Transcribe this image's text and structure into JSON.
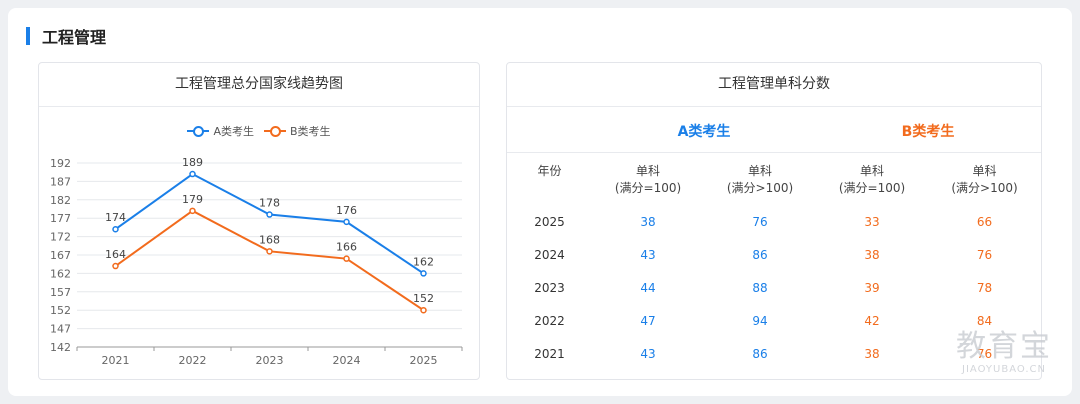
{
  "section": {
    "title": "工程管理"
  },
  "left_card": {
    "title": "工程管理总分国家线趋势图"
  },
  "right_card": {
    "title": "工程管理单科分数",
    "group_a": "A类考生",
    "group_b": "B类考生",
    "headers": {
      "year": "年份",
      "col1_l1": "单科",
      "col1_l2": "(满分=100)",
      "col2_l1": "单科",
      "col2_l2": "(满分>100)",
      "col3_l1": "单科",
      "col3_l2": "(满分=100)",
      "col4_l1": "单科",
      "col4_l2": "(满分>100)"
    },
    "rows": [
      {
        "year": "2025",
        "a1": "38",
        "a2": "76",
        "b1": "33",
        "b2": "66"
      },
      {
        "year": "2024",
        "a1": "43",
        "a2": "86",
        "b1": "38",
        "b2": "76"
      },
      {
        "year": "2023",
        "a1": "44",
        "a2": "88",
        "b1": "39",
        "b2": "78"
      },
      {
        "year": "2022",
        "a1": "47",
        "a2": "94",
        "b1": "42",
        "b2": "84"
      },
      {
        "year": "2021",
        "a1": "43",
        "a2": "86",
        "b1": "38",
        "b2": "76"
      }
    ]
  },
  "watermark": {
    "text": "教育宝",
    "url": "JIAOYUBAO.CN"
  },
  "colors": {
    "accent": "#1a7fe8",
    "series_a": "#1a7fe8",
    "series_b": "#f26b1d"
  },
  "chart_data": {
    "type": "line",
    "categories": [
      "2021",
      "2022",
      "2023",
      "2024",
      "2025"
    ],
    "series": [
      {
        "name": "A类考生",
        "values": [
          174,
          189,
          178,
          176,
          162
        ],
        "color": "#1a7fe8"
      },
      {
        "name": "B类考生",
        "values": [
          164,
          179,
          168,
          166,
          152
        ],
        "color": "#f26b1d"
      }
    ],
    "yticks": [
      142,
      147,
      152,
      157,
      162,
      167,
      172,
      177,
      182,
      187,
      192
    ],
    "ylim": [
      142,
      192
    ],
    "grid": true,
    "legend_position": "top-center",
    "data_labels": true
  }
}
